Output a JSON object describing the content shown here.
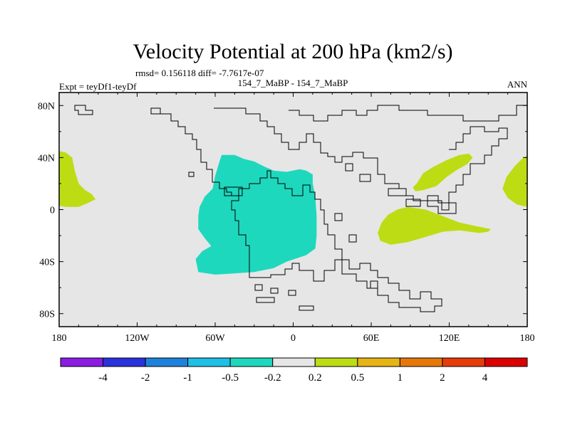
{
  "chart_data": {
    "type": "heatmap",
    "title": "Velocity Potential at 200 hPa (km2/s)",
    "stats_line": "rmsd= 0.156118 diff= -7.7617e-07",
    "left_label": "Expt = teyDf1-teyDf",
    "center_label": "154_7_MaBP - 154_7_MaBP",
    "right_label": "ANN",
    "x_range": [
      -180,
      180
    ],
    "y_range": [
      -90,
      90
    ],
    "x_ticks": [
      {
        "value": -180,
        "label": "180"
      },
      {
        "value": -120,
        "label": "120W"
      },
      {
        "value": -60,
        "label": "60W"
      },
      {
        "value": 0,
        "label": "0"
      },
      {
        "value": 60,
        "label": "60E"
      },
      {
        "value": 120,
        "label": "120E"
      },
      {
        "value": 180,
        "label": "180"
      }
    ],
    "y_ticks": [
      {
        "value": 80,
        "label": "80N"
      },
      {
        "value": 40,
        "label": "40N"
      },
      {
        "value": 0,
        "label": "0"
      },
      {
        "value": -40,
        "label": "40S"
      },
      {
        "value": -80,
        "label": "80S"
      }
    ],
    "background_class_color": "#e6e6e6",
    "colorbar": {
      "colors": [
        "#8a1ee0",
        "#2a32dc",
        "#1e82dc",
        "#1ec0e6",
        "#1ed8be",
        "#e6e6e6",
        "#bedc14",
        "#e6b414",
        "#e6780a",
        "#e63c0a",
        "#dc0000"
      ],
      "labels": [
        "-4",
        "-2",
        "-1",
        "-0.5",
        "-0.2",
        "0.2",
        "0.5",
        "1",
        "2",
        "4"
      ]
    },
    "regions": [
      {
        "name": "negative-anomaly-south-america",
        "interval": "-0.5 to -0.2",
        "color": "#1ed8be",
        "lonlat": [
          [
            -55,
            42
          ],
          [
            -45,
            42
          ],
          [
            -38,
            39
          ],
          [
            -30,
            37
          ],
          [
            -22,
            33
          ],
          [
            -15,
            30
          ],
          [
            -5,
            29
          ],
          [
            5,
            31
          ],
          [
            10,
            30
          ],
          [
            15,
            27
          ],
          [
            15,
            20
          ],
          [
            17,
            10
          ],
          [
            18,
            -5
          ],
          [
            18,
            -20
          ],
          [
            17,
            -30
          ],
          [
            10,
            -35
          ],
          [
            -5,
            -40
          ],
          [
            -15,
            -45
          ],
          [
            -30,
            -48
          ],
          [
            -45,
            -49
          ],
          [
            -60,
            -50
          ],
          [
            -73,
            -48
          ],
          [
            -75,
            -38
          ],
          [
            -70,
            -32
          ],
          [
            -63,
            -28
          ],
          [
            -68,
            -22
          ],
          [
            -73,
            -15
          ],
          [
            -73,
            -5
          ],
          [
            -72,
            2
          ],
          [
            -68,
            10
          ],
          [
            -62,
            16
          ],
          [
            -60,
            26
          ],
          [
            -57,
            36
          ],
          [
            -55,
            42
          ]
        ]
      },
      {
        "name": "positive-anomaly-far-west",
        "interval": "0.2 to 0.5",
        "color": "#bedc14",
        "lonlat": [
          [
            -180,
            45
          ],
          [
            -175,
            44
          ],
          [
            -170,
            40
          ],
          [
            -168,
            30
          ],
          [
            -165,
            20
          ],
          [
            -160,
            15
          ],
          [
            -155,
            12
          ],
          [
            -152,
            8
          ],
          [
            -158,
            5
          ],
          [
            -165,
            2
          ],
          [
            -175,
            2
          ],
          [
            -180,
            3
          ]
        ]
      },
      {
        "name": "positive-anomaly-asia",
        "interval": "0.2 to 0.5",
        "color": "#bedc14",
        "lonlat": [
          [
            95,
            20
          ],
          [
            100,
            28
          ],
          [
            108,
            33
          ],
          [
            118,
            38
          ],
          [
            128,
            42
          ],
          [
            135,
            43
          ],
          [
            138,
            40
          ],
          [
            134,
            35
          ],
          [
            125,
            30
          ],
          [
            118,
            25
          ],
          [
            110,
            18
          ],
          [
            100,
            15
          ],
          [
            94,
            14
          ],
          [
            92,
            17
          ],
          [
            95,
            20
          ]
        ]
      },
      {
        "name": "positive-anomaly-indian-ocean",
        "interval": "0.2 to 0.5",
        "color": "#bedc14",
        "lonlat": [
          [
            88,
            2
          ],
          [
            80,
            0
          ],
          [
            73,
            -4
          ],
          [
            68,
            -10
          ],
          [
            65,
            -18
          ],
          [
            67,
            -24
          ],
          [
            75,
            -27
          ],
          [
            88,
            -25
          ],
          [
            102,
            -21
          ],
          [
            115,
            -17
          ],
          [
            128,
            -16
          ],
          [
            143,
            -18
          ],
          [
            150,
            -17
          ],
          [
            152,
            -15
          ],
          [
            142,
            -13
          ],
          [
            128,
            -10
          ],
          [
            115,
            -5
          ],
          [
            102,
            0
          ],
          [
            88,
            2
          ]
        ]
      },
      {
        "name": "positive-anomaly-far-east",
        "interval": "0.2 to 0.5",
        "color": "#bedc14",
        "lonlat": [
          [
            180,
            42
          ],
          [
            175,
            38
          ],
          [
            170,
            33
          ],
          [
            164,
            25
          ],
          [
            161,
            16
          ],
          [
            165,
            9
          ],
          [
            172,
            4
          ],
          [
            180,
            2
          ]
        ]
      }
    ]
  }
}
